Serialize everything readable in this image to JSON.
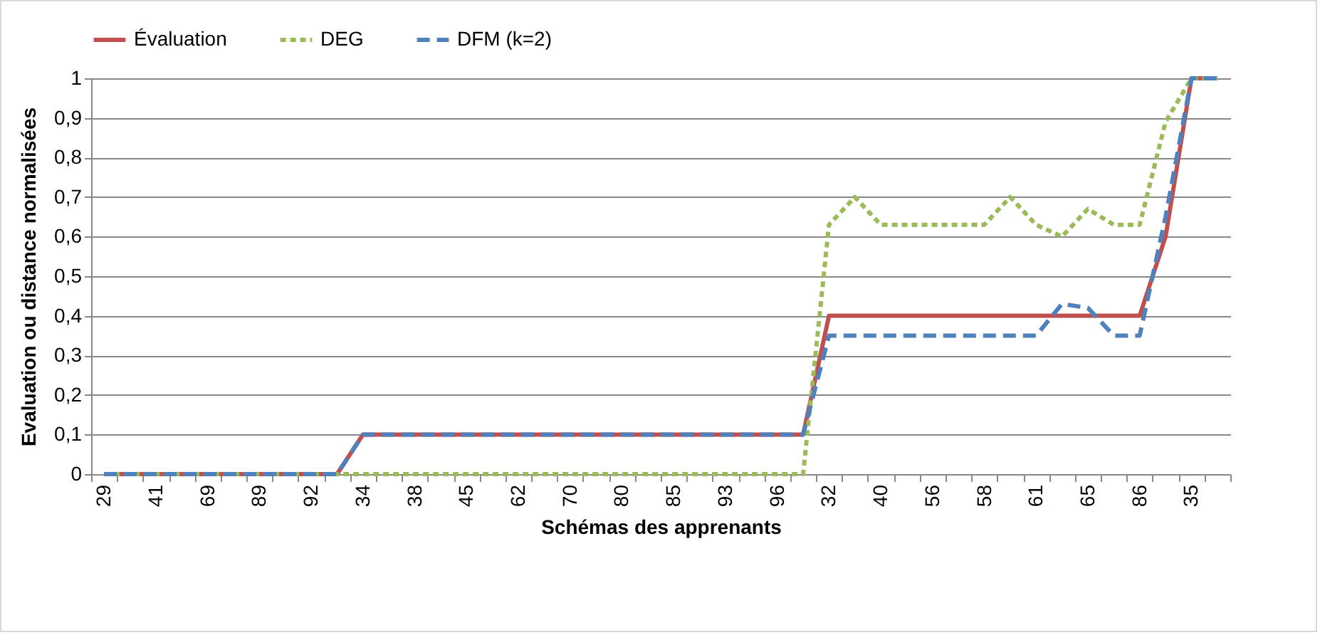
{
  "chart_data": {
    "type": "line",
    "xlabel": "Schémas des apprenants",
    "ylabel": "Evaluation ou distance normalisées",
    "categories": [
      "29",
      null,
      "41",
      null,
      "69",
      null,
      "89",
      null,
      "92",
      null,
      "34",
      null,
      "38",
      null,
      "45",
      null,
      "62",
      null,
      "70",
      null,
      "80",
      null,
      "85",
      null,
      "93",
      null,
      "96",
      null,
      "32",
      null,
      "40",
      null,
      "56",
      null,
      "58",
      null,
      "61",
      null,
      "65",
      null,
      "86",
      null,
      "35",
      null
    ],
    "series": [
      {
        "name": "Évaluation",
        "color": "#c0504d",
        "line_style": "solid",
        "values": [
          0,
          0,
          0,
          0,
          0,
          0,
          0,
          0,
          0,
          0,
          0.1,
          0.1,
          0.1,
          0.1,
          0.1,
          0.1,
          0.1,
          0.1,
          0.1,
          0.1,
          0.1,
          0.1,
          0.1,
          0.1,
          0.1,
          0.1,
          0.1,
          0.1,
          0.4,
          0.4,
          0.4,
          0.4,
          0.4,
          0.4,
          0.4,
          0.4,
          0.4,
          0.4,
          0.4,
          0.4,
          0.4,
          0.6,
          1,
          1
        ]
      },
      {
        "name": "DEG",
        "color": "#9bbb59",
        "line_style": "dotted",
        "values": [
          0,
          0,
          0,
          0,
          0,
          0,
          0,
          0,
          0,
          0,
          0,
          0,
          0,
          0,
          0,
          0,
          0,
          0,
          0,
          0,
          0,
          0,
          0,
          0,
          0,
          0,
          0,
          0,
          0.63,
          0.7,
          0.63,
          0.63,
          0.63,
          0.63,
          0.63,
          0.7,
          0.63,
          0.6,
          0.67,
          0.63,
          0.63,
          0.89,
          1,
          1
        ]
      },
      {
        "name": "DFM (k=2)",
        "color": "#4f81bd",
        "line_style": "dashed",
        "values": [
          0,
          0,
          0,
          0,
          0,
          0,
          0,
          0,
          0,
          0,
          0.1,
          0.1,
          0.1,
          0.1,
          0.1,
          0.1,
          0.1,
          0.1,
          0.1,
          0.1,
          0.1,
          0.1,
          0.1,
          0.1,
          0.1,
          0.1,
          0.1,
          0.1,
          0.35,
          0.35,
          0.35,
          0.35,
          0.35,
          0.35,
          0.35,
          0.35,
          0.35,
          0.43,
          0.42,
          0.35,
          0.35,
          0.65,
          1,
          1
        ]
      }
    ],
    "ylim": [
      0,
      1
    ],
    "yticks": [
      0,
      {
        "value": 0.1,
        "label": "0,1"
      },
      {
        "value": 0.2,
        "label": "0,2"
      },
      {
        "value": 0.3,
        "label": "0,3"
      },
      {
        "value": 0.4,
        "label": "0,4"
      },
      {
        "value": 0.5,
        "label": "0,5"
      },
      {
        "value": 0.6,
        "label": "0,6"
      },
      {
        "value": 0.7,
        "label": "0,7"
      },
      {
        "value": 0.8,
        "label": "0,8"
      },
      {
        "value": 0.9,
        "label": "0,9"
      },
      1
    ],
    "grid": "y",
    "legend": "top"
  }
}
